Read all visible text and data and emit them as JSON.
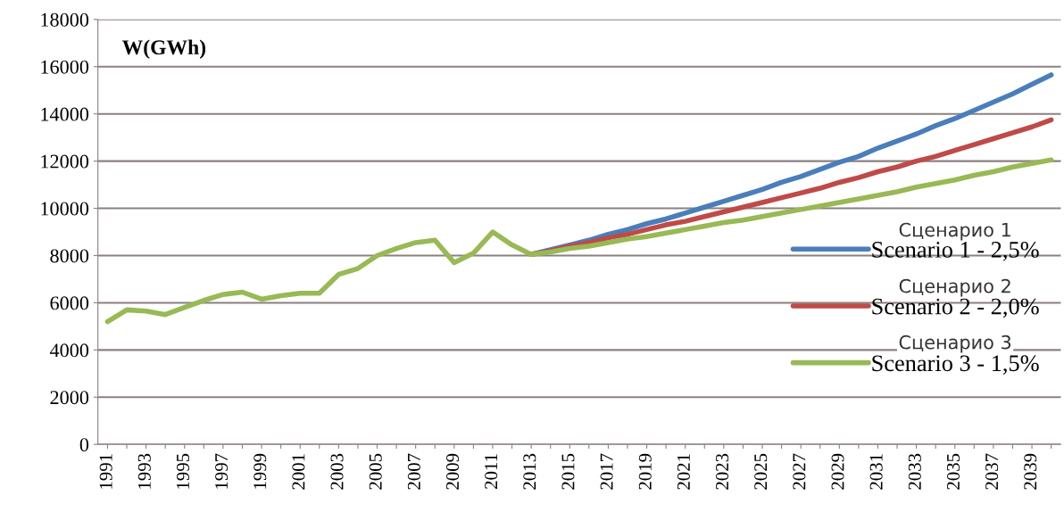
{
  "chart_data": {
    "type": "line",
    "categories": [
      "1991",
      null,
      "1993",
      null,
      "1995",
      null,
      "1997",
      null,
      "1999",
      null,
      "2001",
      null,
      "2003",
      null,
      "2005",
      null,
      "2007",
      null,
      "2009",
      null,
      "2011",
      null,
      "2013",
      null,
      "2015",
      null,
      "2017",
      null,
      "2019",
      null,
      "2021",
      null,
      "2023",
      null,
      "2025",
      null,
      "2027",
      null,
      "2029",
      null,
      "2031",
      null,
      "2033",
      null,
      "2035",
      null,
      "2037",
      null,
      "2039",
      null
    ],
    "series": [
      {
        "name": "Scenario 1 - 2,5%",
        "color": "#4a7ebb",
        "values": [
          null,
          null,
          null,
          null,
          null,
          null,
          null,
          null,
          null,
          null,
          null,
          null,
          null,
          null,
          null,
          null,
          null,
          null,
          null,
          null,
          null,
          null,
          8050,
          8250,
          8450,
          8650,
          8900,
          9100,
          9350,
          9550,
          9800,
          10050,
          10300,
          10550,
          10800,
          11100,
          11350,
          11650,
          11950,
          12200,
          12550,
          12850,
          13150,
          13500,
          13800,
          14150,
          14500,
          14850,
          15250,
          15650
        ]
      },
      {
        "name": "Scenario 2 - 2,0%",
        "color": "#be4b48",
        "values": [
          null,
          null,
          null,
          null,
          null,
          null,
          null,
          null,
          null,
          null,
          null,
          null,
          null,
          null,
          null,
          null,
          null,
          null,
          null,
          null,
          null,
          null,
          8050,
          8200,
          8400,
          8550,
          8750,
          8900,
          9100,
          9300,
          9450,
          9650,
          9850,
          10050,
          10250,
          10450,
          10650,
          10850,
          11100,
          11300,
          11550,
          11750,
          12000,
          12200,
          12450,
          12700,
          12950,
          13200,
          13450,
          13750
        ]
      },
      {
        "name": "Scenario 3 - 1,5%",
        "color": "#98b954",
        "values": [
          5200,
          5700,
          5650,
          5500,
          5800,
          6100,
          6350,
          6450,
          6150,
          6300,
          6400,
          6400,
          7200,
          7450,
          8000,
          8300,
          8550,
          8650,
          7700,
          8100,
          9000,
          8450,
          8050,
          8150,
          8300,
          8400,
          8550,
          8700,
          8800,
          8950,
          9100,
          9250,
          9400,
          9500,
          9650,
          9800,
          9950,
          10100,
          10250,
          10400,
          10550,
          10700,
          10900,
          11050,
          11200,
          11400,
          11550,
          11750,
          11900,
          12050
        ]
      }
    ],
    "ylim": [
      0,
      18000
    ],
    "yticks": [
      0,
      2000,
      4000,
      6000,
      8000,
      10000,
      12000,
      14000,
      16000,
      18000
    ],
    "grid": "y",
    "legend": "right",
    "marker": "none",
    "line_style": "solid",
    "annotations": [
      "W(GWh)",
      "Сценарио 1",
      "Сценарио 2",
      "Сценарио 3"
    ]
  }
}
